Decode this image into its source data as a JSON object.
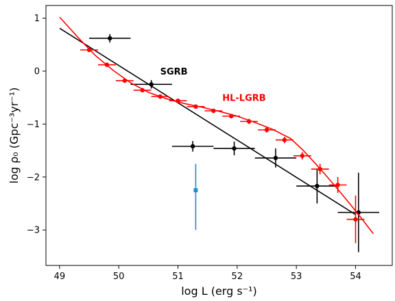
{
  "chart_data": {
    "type": "scatter",
    "xlabel": "log L (erg s⁻¹)",
    "ylabel": "log ρ₀ (Gpc⁻³yr⁻¹)",
    "xlim": [
      48.77,
      54.62
    ],
    "ylim": [
      -3.67,
      1.24
    ],
    "xticks": [
      49,
      50,
      51,
      52,
      53,
      54
    ],
    "yticks": [
      1,
      0,
      -1,
      -2,
      -3
    ],
    "xtick_labels": [
      "49",
      "50",
      "51",
      "52",
      "53",
      "54"
    ],
    "ytick_labels": [
      "1",
      "0",
      "−1",
      "−2",
      "−3"
    ],
    "grid": false,
    "annotations": [
      {
        "text": "SGRB",
        "x": 50.7,
        "y": 0.0,
        "color": "#000000"
      },
      {
        "text": "HL-LGRB",
        "x": 51.75,
        "y": -0.5,
        "color": "#ff0000"
      }
    ],
    "series": [
      {
        "color": "#000000",
        "kind": "points",
        "points": [
          {
            "x": 49.85,
            "y": 0.62,
            "xerr": 0.35,
            "yerr": 0.08
          },
          {
            "x": 50.55,
            "y": -0.25,
            "xerr": 0.35,
            "yerr": 0.08
          },
          {
            "x": 51.25,
            "y": -1.42,
            "xerr": 0.35,
            "yerr": 0.1
          },
          {
            "x": 51.95,
            "y": -1.46,
            "xerr": 0.35,
            "yerr": 0.13
          },
          {
            "x": 52.65,
            "y": -1.64,
            "xerr": 0.35,
            "yerr": 0.18
          },
          {
            "x": 53.35,
            "y": -2.17,
            "xerr": 0.35,
            "yerr": 0.33
          },
          {
            "x": 54.05,
            "y": -2.67,
            "xerr": 0.35,
            "yerr": 0.75
          }
        ]
      },
      {
        "color": "#000000",
        "kind": "line",
        "x": [
          49.0,
          54.0
        ],
        "y": [
          0.81,
          -2.71
        ]
      },
      {
        "color": "#ff0000",
        "kind": "points",
        "points": [
          {
            "x": 49.5,
            "y": 0.4,
            "xerr": 0.15,
            "yerr": 0.04
          },
          {
            "x": 49.8,
            "y": 0.12,
            "xerr": 0.15,
            "yerr": 0.04
          },
          {
            "x": 50.1,
            "y": -0.18,
            "xerr": 0.15,
            "yerr": 0.04
          },
          {
            "x": 50.4,
            "y": -0.36,
            "xerr": 0.15,
            "yerr": 0.04
          },
          {
            "x": 50.7,
            "y": -0.48,
            "xerr": 0.15,
            "yerr": 0.04
          },
          {
            "x": 51.0,
            "y": -0.56,
            "xerr": 0.15,
            "yerr": 0.04
          },
          {
            "x": 51.3,
            "y": -0.67,
            "xerr": 0.15,
            "yerr": 0.04
          },
          {
            "x": 51.6,
            "y": -0.75,
            "xerr": 0.15,
            "yerr": 0.04
          },
          {
            "x": 51.9,
            "y": -0.85,
            "xerr": 0.15,
            "yerr": 0.04
          },
          {
            "x": 52.2,
            "y": -0.95,
            "xerr": 0.15,
            "yerr": 0.05
          },
          {
            "x": 52.5,
            "y": -1.11,
            "xerr": 0.15,
            "yerr": 0.05
          },
          {
            "x": 52.8,
            "y": -1.3,
            "xerr": 0.15,
            "yerr": 0.06
          },
          {
            "x": 53.1,
            "y": -1.6,
            "xerr": 0.15,
            "yerr": 0.07
          },
          {
            "x": 53.4,
            "y": -1.85,
            "xerr": 0.15,
            "yerr": 0.1
          },
          {
            "x": 53.7,
            "y": -2.15,
            "xerr": 0.15,
            "yerr": 0.15
          },
          {
            "x": 54.0,
            "y": -2.8,
            "xerr": 0.15,
            "yerr": 0.45
          }
        ]
      },
      {
        "color": "#ff0000",
        "kind": "line",
        "x": [
          49.0,
          49.3,
          49.6,
          49.9,
          50.2,
          50.5,
          50.8,
          51.1,
          51.4,
          51.7,
          52.0,
          52.3,
          52.6,
          52.9,
          53.1,
          53.3,
          53.5,
          53.7,
          53.9,
          54.1,
          54.3
        ],
        "y": [
          1.02,
          0.65,
          0.3,
          0.02,
          -0.22,
          -0.4,
          -0.52,
          -0.61,
          -0.68,
          -0.76,
          -0.85,
          -0.97,
          -1.1,
          -1.27,
          -1.48,
          -1.72,
          -1.97,
          -2.23,
          -2.5,
          -2.78,
          -3.07
        ]
      },
      {
        "color": "#1f8fc8",
        "kind": "points",
        "points": [
          {
            "x": 51.3,
            "y": -2.25,
            "xerr": 0,
            "yerr_low": 0.75,
            "yerr_high": 0.5
          }
        ]
      }
    ]
  }
}
